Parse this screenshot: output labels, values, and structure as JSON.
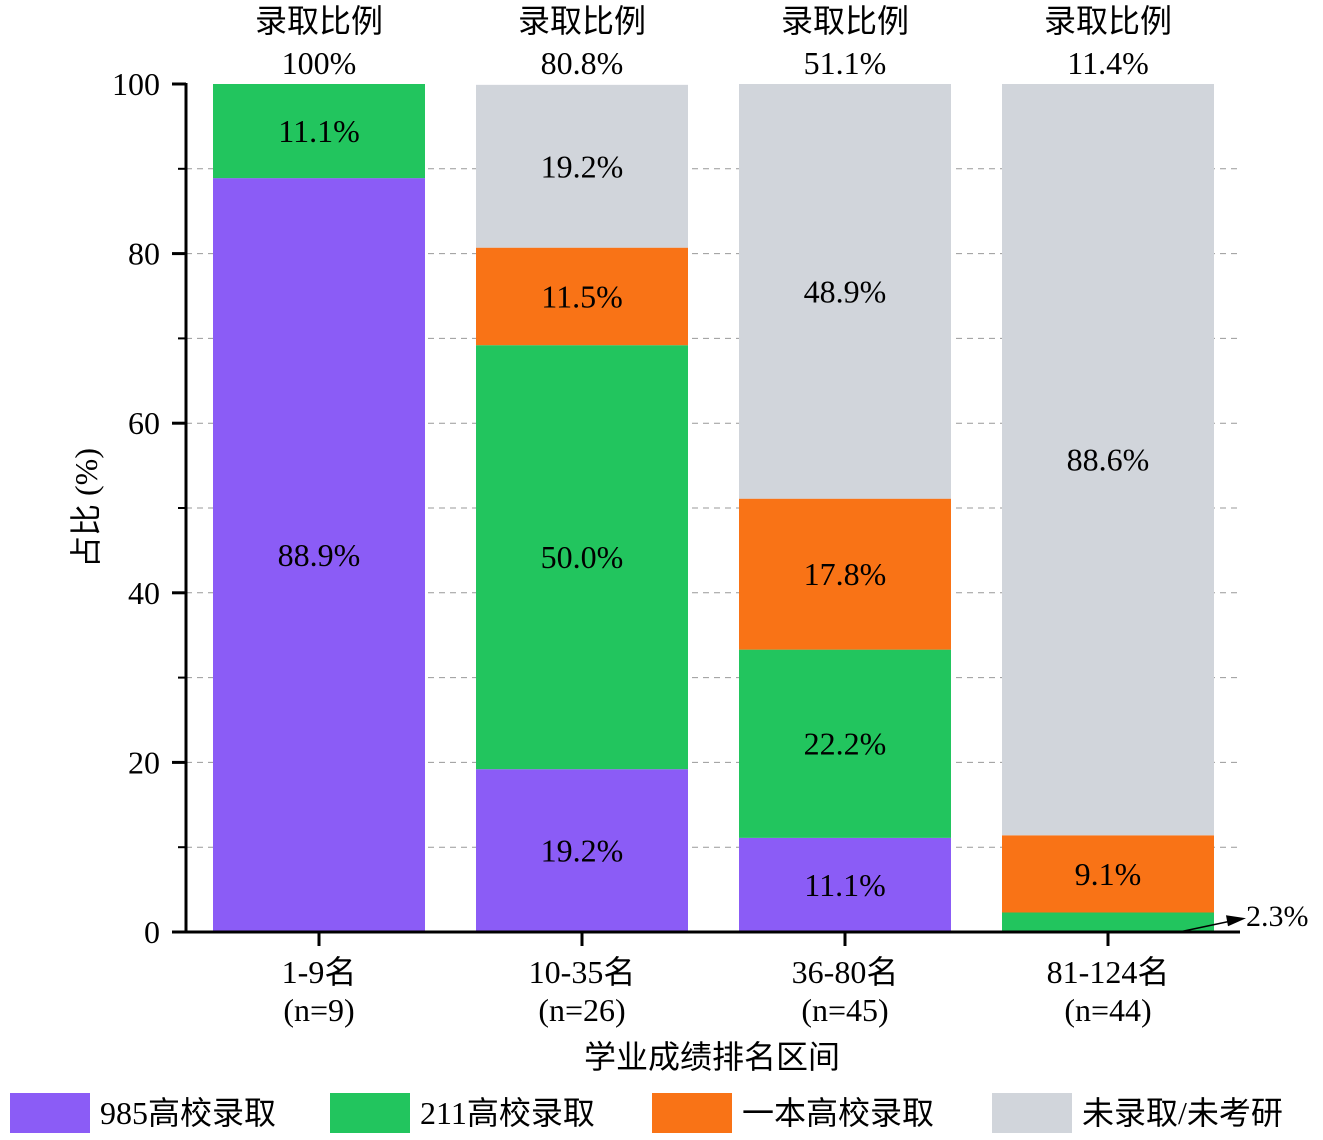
{
  "chart_data": {
    "type": "bar",
    "stacked": true,
    "xlabel": "学业成绩排名区间",
    "ylabel": "占比 (%)",
    "ylim": [
      0,
      100
    ],
    "yticks": [
      0,
      20,
      40,
      60,
      80,
      100
    ],
    "grid": "dashed horizontal every 10",
    "legend_placement": "bottom",
    "categories": [
      "1-9名",
      "10-35名",
      "36-80名",
      "81-124名"
    ],
    "category_n": [
      "(n=9)",
      "(n=26)",
      "(n=45)",
      "(n=44)"
    ],
    "top_label": "录取比例",
    "admission_rates": [
      "100%",
      "80.8%",
      "51.1%",
      "11.4%"
    ],
    "series": [
      {
        "name": "985高校录取",
        "color": "#8B5CF6",
        "values": [
          88.9,
          19.2,
          11.1,
          0
        ],
        "labels": [
          "88.9%",
          "19.2%",
          "11.1%",
          ""
        ]
      },
      {
        "name": "211高校录取",
        "color": "#22C55E",
        "values": [
          11.1,
          50.0,
          22.2,
          2.3
        ],
        "labels": [
          "11.1%",
          "50.0%",
          "22.2%",
          "2.3%"
        ]
      },
      {
        "name": "一本高校录取",
        "color": "#F97316",
        "values": [
          0,
          11.5,
          17.8,
          9.1
        ],
        "labels": [
          "",
          "11.5%",
          "17.8%",
          "9.1%"
        ]
      },
      {
        "name": "未录取/未考研",
        "color": "#D1D5DB",
        "values": [
          0,
          19.2,
          48.9,
          88.6
        ],
        "labels": [
          "",
          "19.2%",
          "48.9%",
          "88.6%"
        ]
      }
    ]
  }
}
